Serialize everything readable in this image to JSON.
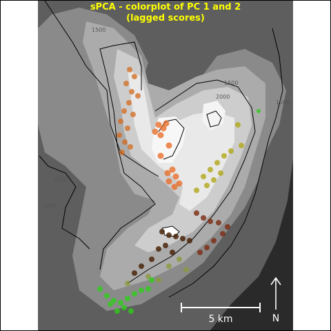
{
  "title": {
    "line1": "sPCA - colorplot of PC 1 and 2",
    "line2": "(lagged scores)"
  },
  "contour_labels": {
    "c1000": "1000",
    "c1500": "1500",
    "c2000": "2000"
  },
  "scale_bar": {
    "label": "5 km",
    "length_km": 5
  },
  "north_arrow": {
    "label": "N"
  },
  "colors": {
    "title": "#ffff00",
    "orange": "#e8661e",
    "orange_dark": "#d2691e",
    "olive": "#b0a818",
    "dark_red": "#7a2a10",
    "brown": "#4a2408",
    "green": "#2ecc1a",
    "olive_green": "#8a9a3a"
  },
  "point_groups": [
    {
      "name": "orange-cluster-northwest",
      "color": "orange_dark"
    },
    {
      "name": "orange-cluster-center",
      "color": "orange"
    },
    {
      "name": "olive-cluster-east",
      "color": "olive"
    },
    {
      "name": "dark-red-cluster-south",
      "color": "dark_red"
    },
    {
      "name": "brown-cluster-south",
      "color": "brown"
    },
    {
      "name": "green-cluster-southwest",
      "color": "green"
    }
  ]
}
